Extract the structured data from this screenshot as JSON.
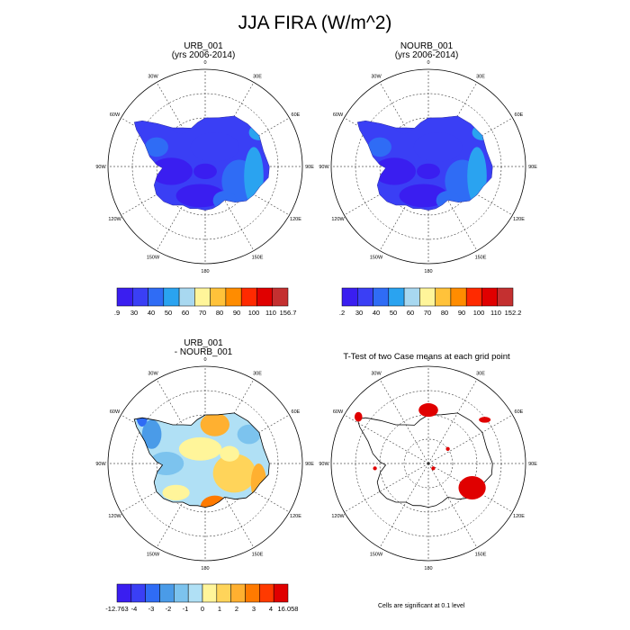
{
  "main_title": "JJA FIRA (W/m^2)",
  "panels": [
    {
      "title_line1": "URB_001",
      "title_line2": "(yrs 2006-2014)"
    },
    {
      "title_line1": "NOURB_001",
      "title_line2": "(yrs 2006-2014)"
    },
    {
      "title_line1": "URB_001",
      "title_line2": "- NOURB_001"
    },
    {
      "title_line1": "T-Test of two Case means at each grid point",
      "title_line2": ""
    }
  ],
  "lon_labels": [
    "0",
    "30E",
    "60E",
    "90E",
    "120E",
    "150E",
    "180",
    "150W",
    "120W",
    "90W",
    "60W",
    "30W"
  ],
  "colorbars": [
    {
      "labels": [
        ".9",
        "30",
        "40",
        "50",
        "60",
        "70",
        "80",
        "90",
        "100",
        "110",
        "156.7"
      ],
      "colors": [
        "#3a1ef0",
        "#3a3ff5",
        "#2f6cf5",
        "#2aa3f0",
        "#a8d8f0",
        "#fff59a",
        "#ffc23a",
        "#ff8c00",
        "#ff2a00",
        "#e00000",
        "#c43030"
      ]
    },
    {
      "labels": [
        ".2",
        "30",
        "40",
        "50",
        "60",
        "70",
        "80",
        "90",
        "100",
        "110",
        "152.2"
      ],
      "colors": [
        "#3a1ef0",
        "#3a3ff5",
        "#2f6cf5",
        "#2aa3f0",
        "#a8d8f0",
        "#fff59a",
        "#ffc23a",
        "#ff8c00",
        "#ff2a00",
        "#e00000",
        "#c43030"
      ]
    },
    {
      "labels": [
        "-12.763",
        "-4",
        "-3",
        "-2",
        "-1",
        "0",
        "1",
        "2",
        "3",
        "4",
        "16.058"
      ],
      "colors": [
        "#3a1ef0",
        "#3a3ff5",
        "#2f6cf5",
        "#4a9be8",
        "#7cc3ee",
        "#b0e0f5",
        "#fff59a",
        "#ffd45a",
        "#ffb030",
        "#ff7a00",
        "#ff3a00",
        "#e00000"
      ]
    }
  ],
  "significance_note": "Cells are significant at 0.1 level",
  "chart_data": [
    {
      "type": "heatmap",
      "title": "URB_001 (yrs 2006-2014)",
      "projection": "south-polar-stereographic",
      "colorbar_levels": [
        ".9",
        "30",
        "40",
        "50",
        "60",
        "70",
        "80",
        "90",
        "100",
        "110",
        "156.7"
      ]
    },
    {
      "type": "heatmap",
      "title": "NOURB_001 (yrs 2006-2014)",
      "projection": "south-polar-stereographic",
      "colorbar_levels": [
        ".2",
        "30",
        "40",
        "50",
        "60",
        "70",
        "80",
        "90",
        "100",
        "110",
        "152.2"
      ]
    },
    {
      "type": "heatmap",
      "title": "URB_001 - NOURB_001",
      "projection": "south-polar-stereographic",
      "colorbar_levels": [
        "-12.763",
        "-4",
        "-3",
        "-2",
        "-1",
        "0",
        "1",
        "2",
        "3",
        "4",
        "16.058"
      ]
    },
    {
      "type": "heatmap",
      "title": "T-Test of two Case means at each grid point",
      "projection": "south-polar-stereographic",
      "annotation": "Cells are significant at 0.1 level"
    }
  ]
}
